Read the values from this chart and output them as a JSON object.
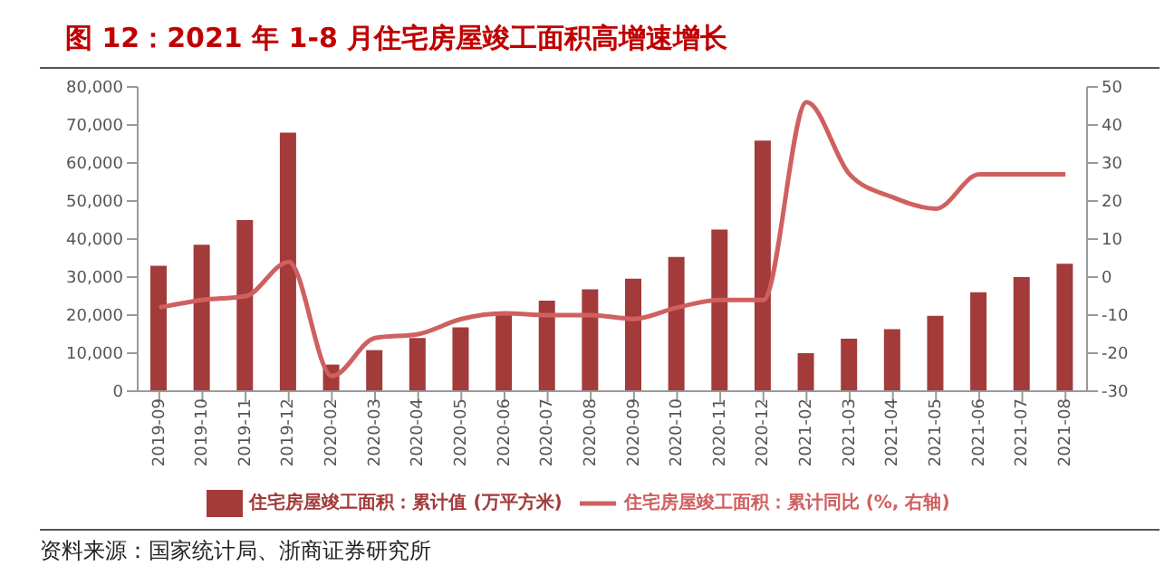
{
  "chart_data": {
    "type": "bar",
    "title": "图 12：2021 年 1-8 月住宅房屋竣工面积高增速增长",
    "categories": [
      "2019-09",
      "2019-10",
      "2019-11",
      "2019-12",
      "2020-02",
      "2020-03",
      "2020-04",
      "2020-05",
      "2020-06",
      "2020-07",
      "2020-08",
      "2020-09",
      "2020-10",
      "2020-11",
      "2020-12",
      "2021-02",
      "2021-03",
      "2021-04",
      "2021-05",
      "2021-06",
      "2021-07",
      "2021-08"
    ],
    "series": [
      {
        "name": "住宅房屋竣工面积：累计值 (万平方米)",
        "color": "#a33b3b",
        "values": [
          33000,
          38500,
          45000,
          68000,
          7000,
          10800,
          14000,
          16800,
          20000,
          23800,
          26800,
          29600,
          35300,
          42500,
          65900,
          10000,
          13800,
          16300,
          19800,
          26000,
          30000,
          33500
        ]
      },
      {
        "name": "住宅房屋竣工面积：累计同比 (%, 右轴)",
        "type": "line",
        "axis": "y2",
        "color": "#d06060",
        "values": [
          -8,
          -6,
          -5,
          4,
          -26,
          -16,
          -15,
          -11,
          -9.5,
          -10,
          -10,
          -11,
          -8,
          -6,
          -6,
          46,
          27,
          21,
          18,
          27,
          27,
          27
        ]
      }
    ],
    "ylim": [
      0,
      80000
    ],
    "yticks": [
      0,
      {
        "value": 10000,
        "label": "10,000"
      },
      {
        "value": 20000,
        "label": "20,000"
      },
      {
        "value": 30000,
        "label": "30,000"
      },
      {
        "value": 40000,
        "label": "40,000"
      },
      {
        "value": 50000,
        "label": "50,000"
      },
      {
        "value": 60000,
        "label": "60,000"
      },
      {
        "value": 70000,
        "label": "70,000"
      },
      {
        "value": 80000,
        "label": "80,000"
      }
    ],
    "y2lim": [
      -30,
      50
    ],
    "y2ticks": [
      -30,
      -20,
      -10,
      0,
      10,
      20,
      30,
      40,
      50
    ],
    "legend": "bottom",
    "grid": false,
    "marker": "none",
    "annotations": [
      "资料来源：国家统计局、浙商证券研究所"
    ]
  }
}
